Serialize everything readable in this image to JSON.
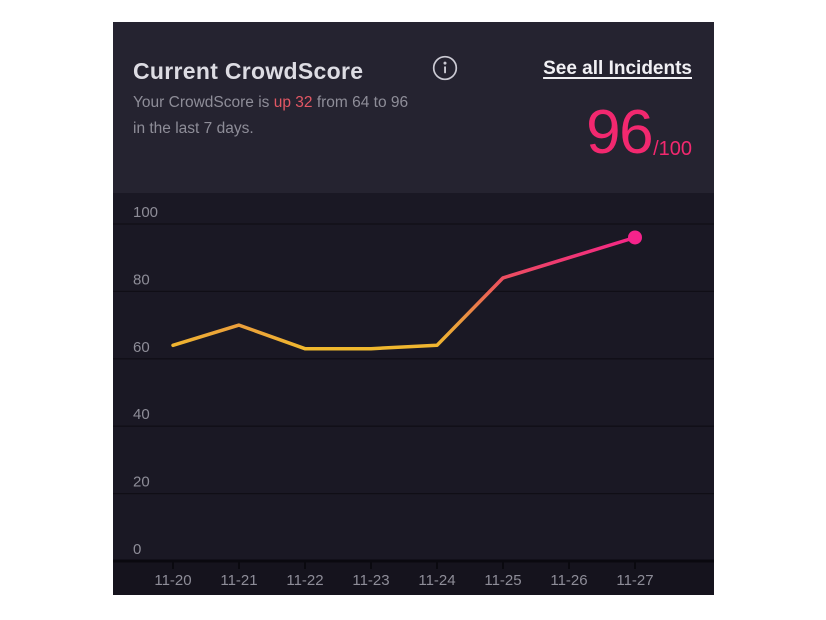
{
  "header": {
    "title": "Current CrowdScore",
    "link_label": "See all Incidents",
    "subtitle_prefix": "Your CrowdScore is ",
    "subtitle_highlight": "up 32",
    "subtitle_suffix": " from 64 to 96",
    "subtitle_line2": "in the last 7 days.",
    "score": "96",
    "score_denominator": "/100"
  },
  "colors": {
    "accent_pink": "#f2286f",
    "delta_red": "#e25764",
    "endpoint_dot": "#f5238b",
    "axis_label_gray": "#8e8d98",
    "header_bg": "#252330",
    "chart_bg": "#1a1824",
    "band_bg": "#15131d",
    "gridline": "#100e16",
    "axis_line": "#0a090f"
  },
  "chart_data": {
    "type": "line",
    "title": "Current CrowdScore trend",
    "categories": [
      "11-20",
      "11-21",
      "11-22",
      "11-23",
      "11-24",
      "11-25",
      "11-26",
      "11-27"
    ],
    "values": [
      64,
      70,
      63,
      63,
      64,
      84,
      90,
      96
    ],
    "xlabel": "",
    "ylabel": "",
    "ylim": [
      0,
      100
    ],
    "yticks": [
      0,
      20,
      40,
      60,
      80,
      100
    ],
    "grid": true,
    "legend": "none",
    "line_gradient": [
      "#f2c328",
      "#ea9a3e",
      "#eb5f55",
      "#ef3a70",
      "#f5238b"
    ],
    "line_gradient_offsets": [
      0,
      0.3,
      0.55,
      0.78,
      1
    ],
    "endpoint_color": "#f5238b"
  }
}
